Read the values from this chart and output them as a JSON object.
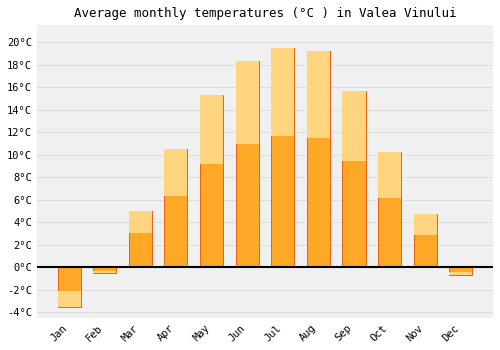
{
  "title": "Average monthly temperatures (°C ) in Valea Vinului",
  "months": [
    "Jan",
    "Feb",
    "Mar",
    "Apr",
    "May",
    "Jun",
    "Jul",
    "Aug",
    "Sep",
    "Oct",
    "Nov",
    "Dec"
  ],
  "values": [
    -3.5,
    -0.5,
    5.0,
    10.5,
    15.3,
    18.3,
    19.5,
    19.2,
    15.7,
    10.2,
    4.7,
    -0.7
  ],
  "bar_color": "#FFA726",
  "bar_edge_color": "#E65100",
  "bar_gradient_top": "#FFD54F",
  "background_color": "#ffffff",
  "plot_bg_color": "#f0f0f0",
  "ylim": [
    -4.5,
    21.5
  ],
  "yticks": [
    -4,
    -2,
    0,
    2,
    4,
    6,
    8,
    10,
    12,
    14,
    16,
    18,
    20
  ],
  "ytick_labels": [
    "-4°C",
    "-2°C",
    "0°C",
    "2°C",
    "4°C",
    "6°C",
    "8°C",
    "10°C",
    "12°C",
    "14°C",
    "16°C",
    "18°C",
    "20°C"
  ],
  "grid_color": "#dddddd",
  "zero_line_color": "#000000",
  "title_fontsize": 9,
  "tick_fontsize": 7.5,
  "font_family": "monospace"
}
